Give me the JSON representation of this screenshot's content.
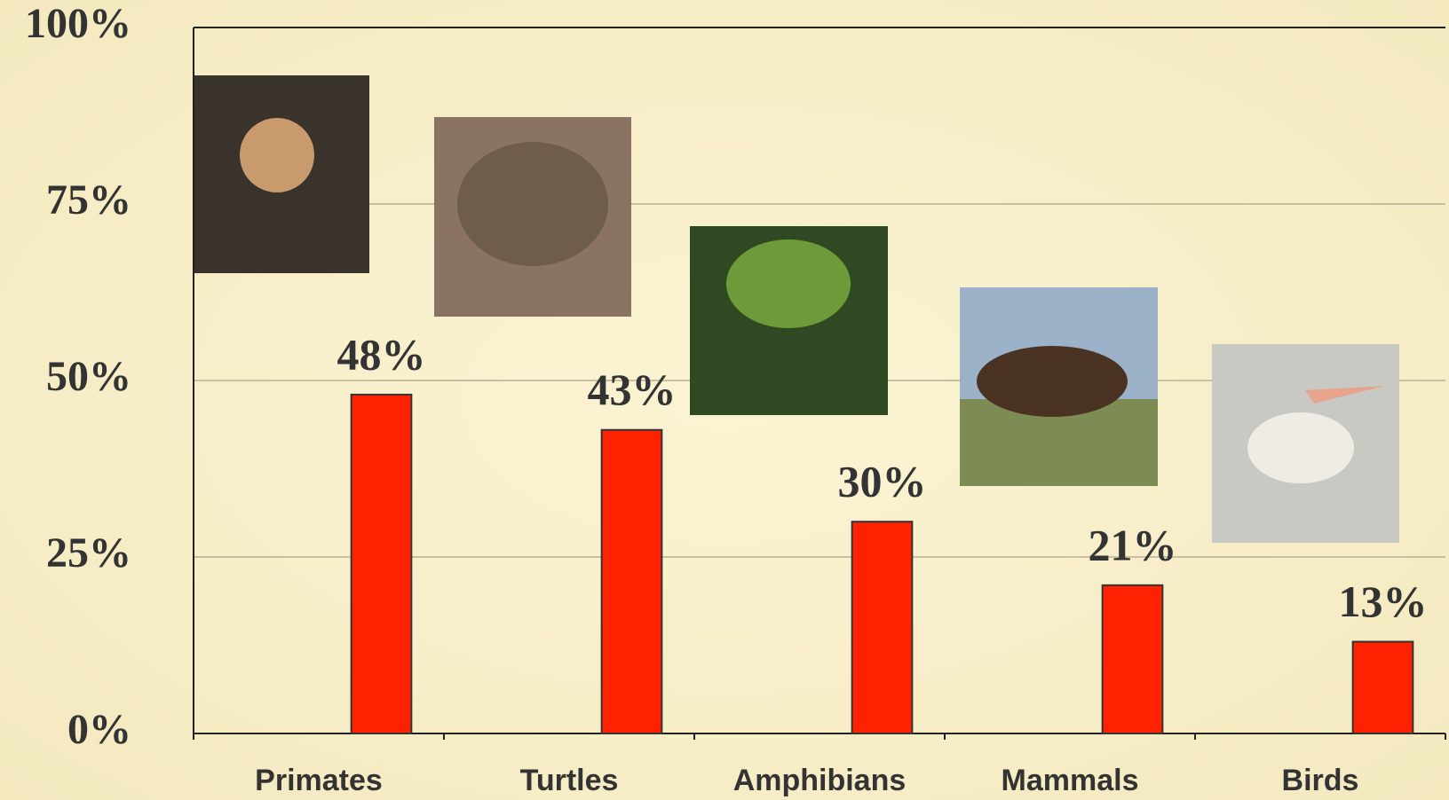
{
  "chart_data": {
    "type": "bar",
    "categories": [
      "Primates",
      "Turtles",
      "Amphibians",
      "Mammals",
      "Birds"
    ],
    "values": [
      48,
      43,
      30,
      21,
      13
    ],
    "value_labels": [
      "48%",
      "43%",
      "30%",
      "21%",
      "13%"
    ],
    "color": "#ff2200",
    "ylim": [
      0,
      100
    ],
    "yticks": [
      {
        "value": 0,
        "label": "0%"
      },
      {
        "value": 25,
        "label": "25%"
      },
      {
        "value": 50,
        "label": "50%"
      },
      {
        "value": 75,
        "label": "75%"
      },
      {
        "value": 100,
        "label": "100%"
      }
    ],
    "grid": true
  }
}
